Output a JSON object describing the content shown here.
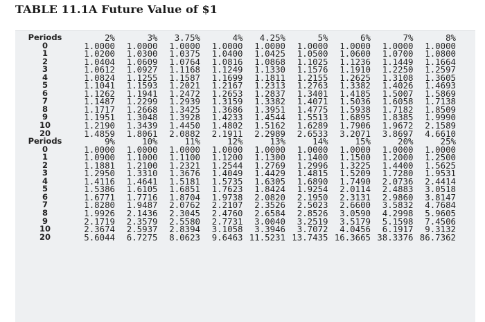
{
  "title": "TABLE 11.1A Future Value of $1",
  "section1": {
    "periods_label": "Periods",
    "rates": [
      "2%",
      "3%",
      "3.75%",
      "4%",
      "4.25%",
      "5%",
      "6%",
      "7%",
      "8%"
    ],
    "rows": [
      {
        "period": "0",
        "values": [
          "1.0000",
          "1.0000",
          "1.0000",
          "1.0000",
          "1.0000",
          "1.0000",
          "1.0000",
          "1.0000",
          "1.0000"
        ]
      },
      {
        "period": "1",
        "values": [
          "1.0200",
          "1.0300",
          "1.0375",
          "1.0400",
          "1.0425",
          "1.0500",
          "1.0600",
          "1.0700",
          "1.0800"
        ]
      },
      {
        "period": "2",
        "values": [
          "1.0404",
          "1.0609",
          "1.0764",
          "1.0816",
          "1.0868",
          "1.1025",
          "1.1236",
          "1.1449",
          "1.1664"
        ]
      },
      {
        "period": "3",
        "values": [
          "1.0612",
          "1.0927",
          "1.1168",
          "1.1249",
          "1.1330",
          "1.1576",
          "1.1910",
          "1.2250",
          "1.2597"
        ]
      },
      {
        "period": "4",
        "values": [
          "1.0824",
          "1.1255",
          "1.1587",
          "1.1699",
          "1.1811",
          "1.2155",
          "1.2625",
          "1.3108",
          "1.3605"
        ]
      },
      {
        "period": "5",
        "values": [
          "1.1041",
          "1.1593",
          "1.2021",
          "1.2167",
          "1.2313",
          "1.2763",
          "1.3382",
          "1.4026",
          "1.4693"
        ]
      },
      {
        "period": "6",
        "values": [
          "1.1262",
          "1.1941",
          "1.2472",
          "1.2653",
          "1.2837",
          "1.3401",
          "1.4185",
          "1.5007",
          "1.5869"
        ]
      },
      {
        "period": "7",
        "values": [
          "1.1487",
          "1.2299",
          "1.2939",
          "1.3159",
          "1.3382",
          "1.4071",
          "1.5036",
          "1.6058",
          "1.7138"
        ]
      },
      {
        "period": "8",
        "values": [
          "1.1717",
          "1.2668",
          "1.3425",
          "1.3686",
          "1.3951",
          "1.4775",
          "1.5938",
          "1.7182",
          "1.8509"
        ]
      },
      {
        "period": "9",
        "values": [
          "1.1951",
          "1.3048",
          "1.3928",
          "1.4233",
          "1.4544",
          "1.5513",
          "1.6895",
          "1.8385",
          "1.9990"
        ]
      },
      {
        "period": "10",
        "values": [
          "1.2190",
          "1.3439",
          "1.4450",
          "1.4802",
          "1.5162",
          "1.6289",
          "1.7906",
          "1.9672",
          "2.1589"
        ]
      },
      {
        "period": "20",
        "values": [
          "1.4859",
          "1.8061",
          "2.0882",
          "2.1911",
          "2.2989",
          "2.6533",
          "3.2071",
          "3.8697",
          "4.6610"
        ]
      }
    ]
  },
  "section2": {
    "periods_label": "Periods",
    "rates": [
      "9%",
      "10%",
      "11%",
      "12%",
      "13%",
      "14%",
      "15%",
      "20%",
      "25%"
    ],
    "rows": [
      {
        "period": "0",
        "values": [
          "1.0000",
          "1.0000",
          "1.0000",
          "1.0000",
          "1.0000",
          "1.0000",
          "1.0000",
          "1.0000",
          "1.0000"
        ]
      },
      {
        "period": "1",
        "values": [
          "1.0900",
          "1.1000",
          "1.1100",
          "1.1200",
          "1.1300",
          "1.1400",
          "1.1500",
          "1.2000",
          "1.2500"
        ]
      },
      {
        "period": "2",
        "values": [
          "1.1881",
          "1.2100",
          "1.2321",
          "1.2544",
          "1.2769",
          "1.2996",
          "1.3225",
          "1.4400",
          "1.5625"
        ]
      },
      {
        "period": "3",
        "values": [
          "1.2950",
          "1.3310",
          "1.3676",
          "1.4049",
          "1.4429",
          "1.4815",
          "1.5209",
          "1.7280",
          "1.9531"
        ]
      },
      {
        "period": "4",
        "values": [
          "1.4116",
          "1.4641",
          "1.5181",
          "1.5735",
          "1.6305",
          "1.6890",
          "1.7490",
          "2.0736",
          "2.4414"
        ]
      },
      {
        "period": "5",
        "values": [
          "1.5386",
          "1.6105",
          "1.6851",
          "1.7623",
          "1.8424",
          "1.9254",
          "2.0114",
          "2.4883",
          "3.0518"
        ]
      },
      {
        "period": "6",
        "values": [
          "1.6771",
          "1.7716",
          "1.8704",
          "1.9738",
          "2.0820",
          "2.1950",
          "2.3131",
          "2.9860",
          "3.8147"
        ]
      },
      {
        "period": "7",
        "values": [
          "1.8280",
          "1.9487",
          "2.0762",
          "2.2107",
          "2.3526",
          "2.5023",
          "2.6600",
          "3.5832",
          "4.7684"
        ]
      },
      {
        "period": "8",
        "values": [
          "1.9926",
          "2.1436",
          "2.3045",
          "2.4760",
          "2.6584",
          "2.8526",
          "3.0590",
          "4.2998",
          "5.9605"
        ]
      },
      {
        "period": "9",
        "values": [
          "2.1719",
          "2.3579",
          "2.5580",
          "2.7731",
          "3.0040",
          "3.2519",
          "3.5179",
          "5.1598",
          "7.4506"
        ]
      },
      {
        "period": "10",
        "values": [
          "2.3674",
          "2.5937",
          "2.8394",
          "3.1058",
          "3.3946",
          "3.7072",
          "4.0456",
          "6.1917",
          "9.3132"
        ]
      },
      {
        "period": "20",
        "values": [
          "5.6044",
          "6.7275",
          "8.0623",
          "9.6463",
          "11.5231",
          "13.7435",
          "16.3665",
          "38.3376",
          "86.7362"
        ]
      }
    ]
  }
}
